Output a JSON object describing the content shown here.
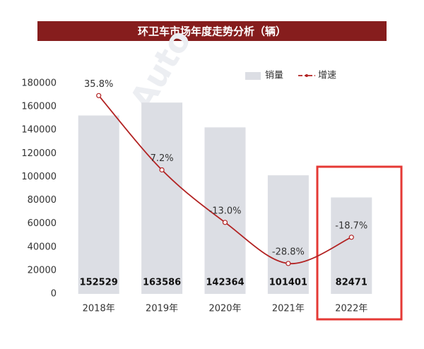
{
  "chart_data": {
    "type": "bar",
    "title": "环卫车市场年度走势分析（辆）",
    "categories": [
      "2018年",
      "2019年",
      "2020年",
      "2021年",
      "2022年"
    ],
    "series": [
      {
        "name": "销量",
        "type": "bar",
        "color": "#dcdee4",
        "values": [
          152529,
          163586,
          142364,
          101401,
          82471
        ]
      },
      {
        "name": "增速",
        "type": "line",
        "axis": "y2",
        "color": "#b22222",
        "values": [
          35.8,
          7.2,
          -13.0,
          -28.8,
          -18.7
        ],
        "value_labels": [
          "35.8%",
          "7.2%",
          "-13.0%",
          "-28.8%",
          "-18.7%"
        ]
      }
    ],
    "ylim": [
      0,
      180000
    ],
    "yticks": [
      0,
      20000,
      40000,
      60000,
      80000,
      100000,
      120000,
      140000,
      160000,
      180000
    ],
    "y2lim": [
      -40.5,
      40.5
    ],
    "grid": false,
    "legend": "top-right"
  }
}
